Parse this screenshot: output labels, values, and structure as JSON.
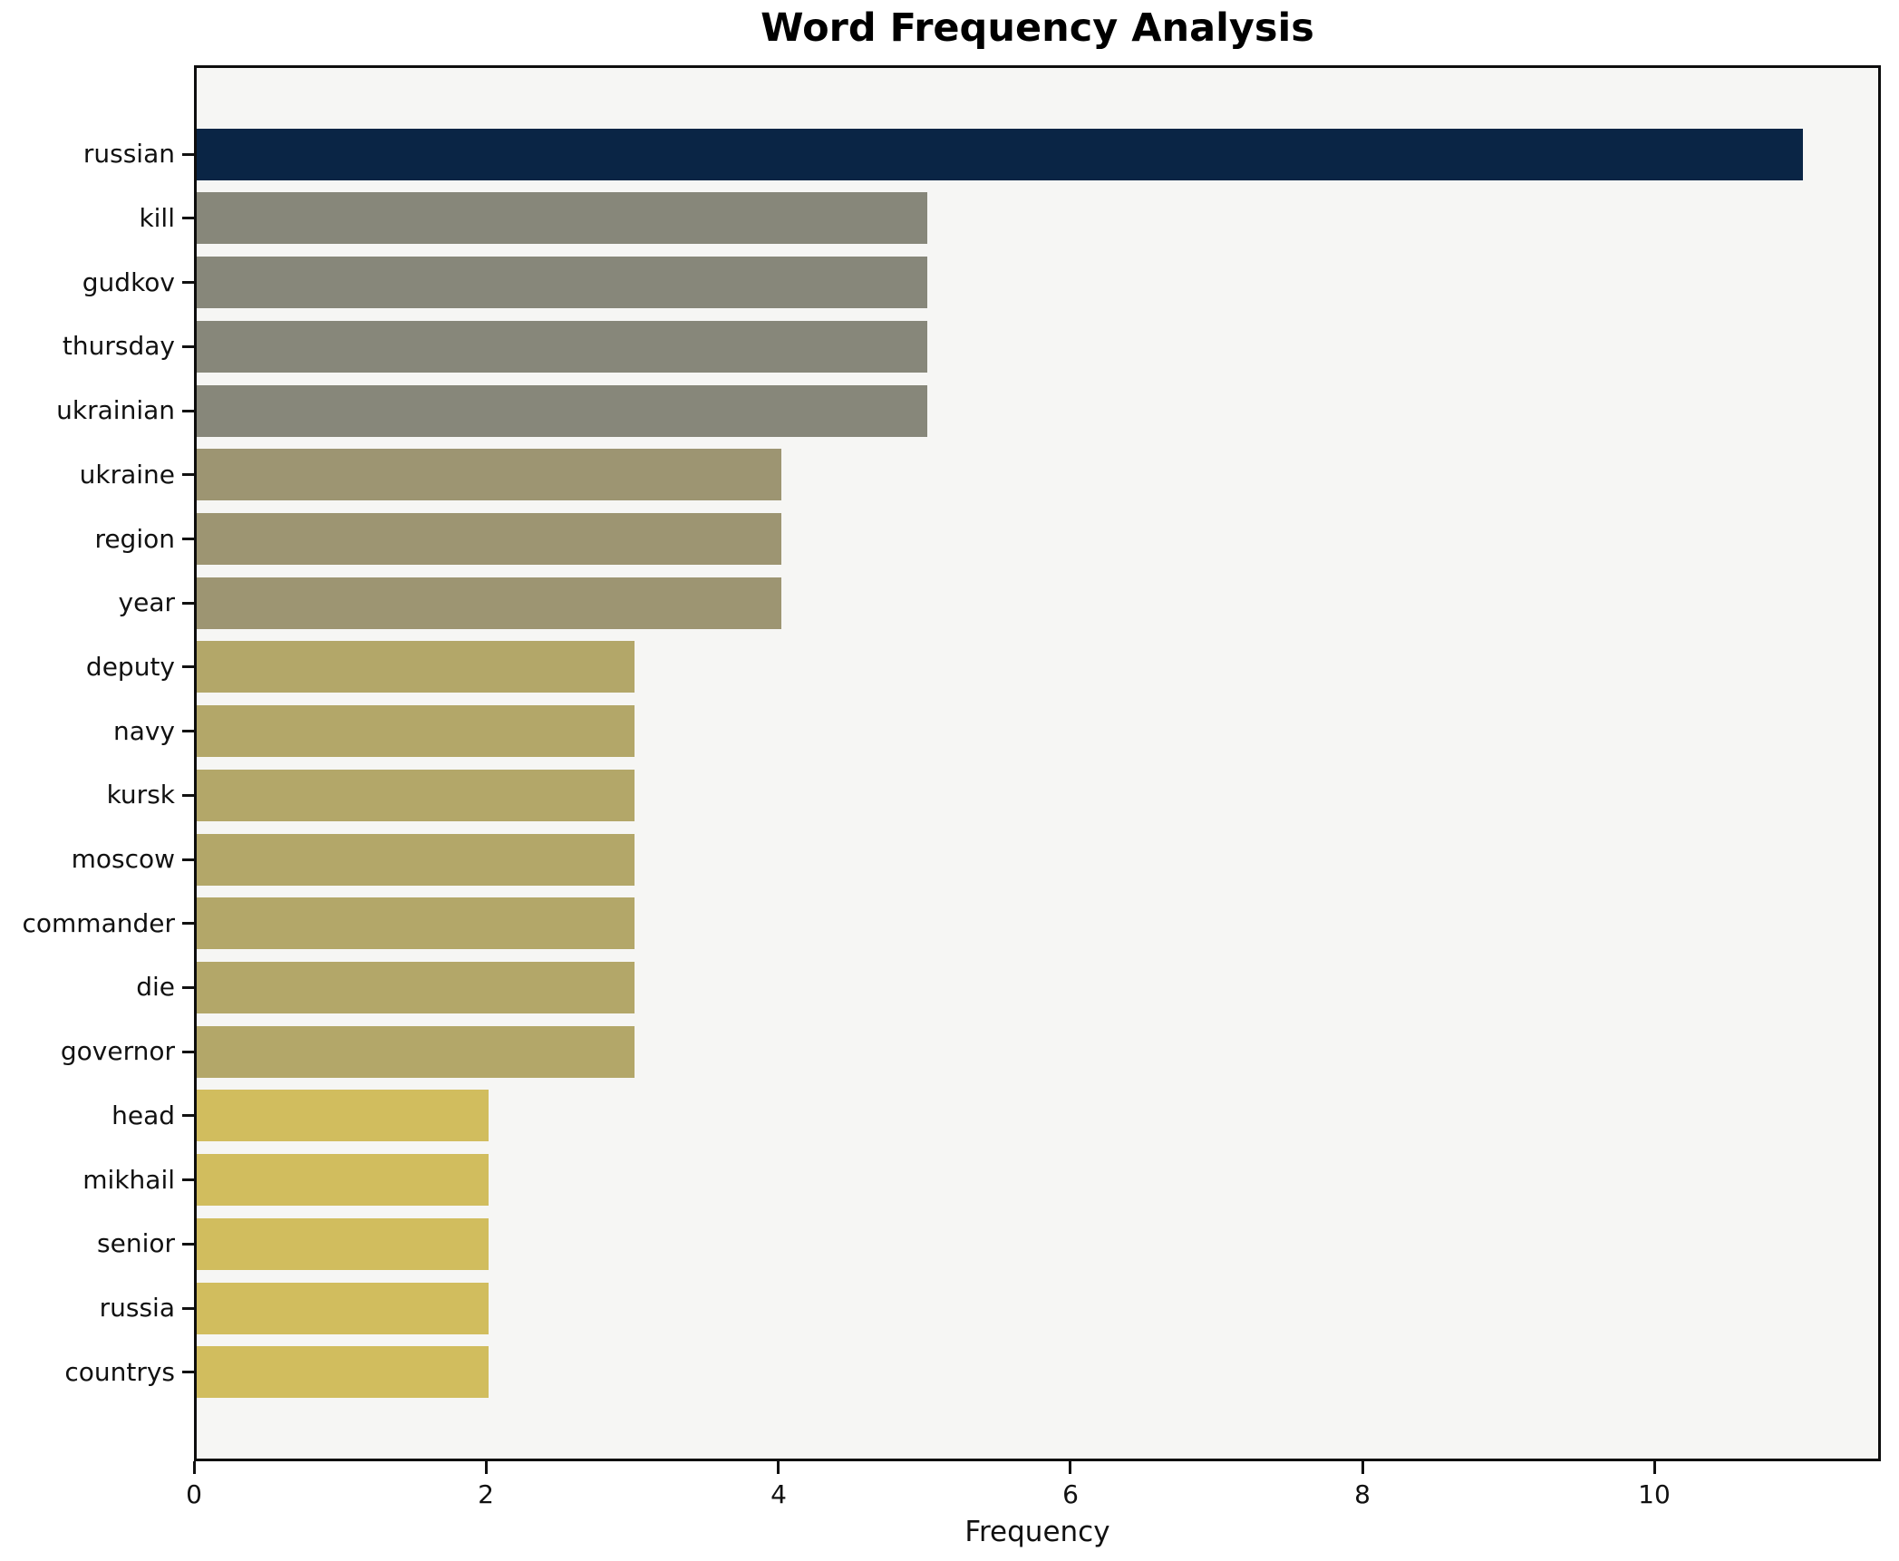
{
  "title": "Word Frequency Analysis",
  "chart_data": {
    "type": "bar",
    "orientation": "horizontal",
    "title": "Word Frequency Analysis",
    "xlabel": "Frequency",
    "ylabel": "",
    "categories": [
      "russian",
      "kill",
      "gudkov",
      "thursday",
      "ukrainian",
      "ukraine",
      "region",
      "year",
      "deputy",
      "navy",
      "kursk",
      "moscow",
      "commander",
      "die",
      "governor",
      "head",
      "mikhail",
      "senior",
      "russia",
      "countrys"
    ],
    "values": [
      11,
      5,
      5,
      5,
      5,
      4,
      4,
      4,
      3,
      3,
      3,
      3,
      3,
      3,
      3,
      2,
      2,
      2,
      2,
      2
    ],
    "bar_colors": [
      "#0a2545",
      "#87877a",
      "#87877a",
      "#87877a",
      "#87877a",
      "#9d9572",
      "#9d9572",
      "#9d9572",
      "#b3a769",
      "#b3a769",
      "#b3a769",
      "#b3a769",
      "#b3a769",
      "#b3a769",
      "#b3a769",
      "#d1bd5e",
      "#d1bd5e",
      "#d1bd5e",
      "#d1bd5e",
      "#d1bd5e"
    ],
    "value_color_map": {
      "11": "#0a2545",
      "5": "#87877a",
      "4": "#9d9572",
      "3": "#b3a769",
      "2": "#d1bd5e"
    },
    "xticks": [
      0,
      2,
      4,
      6,
      8,
      10
    ],
    "xlim": [
      0,
      11.55
    ],
    "grid": false,
    "legend": null,
    "plot_background": "#f6f6f4",
    "figure_background": "#ffffff",
    "spine_color": "#0d0d0d",
    "text_color": "#111111"
  }
}
